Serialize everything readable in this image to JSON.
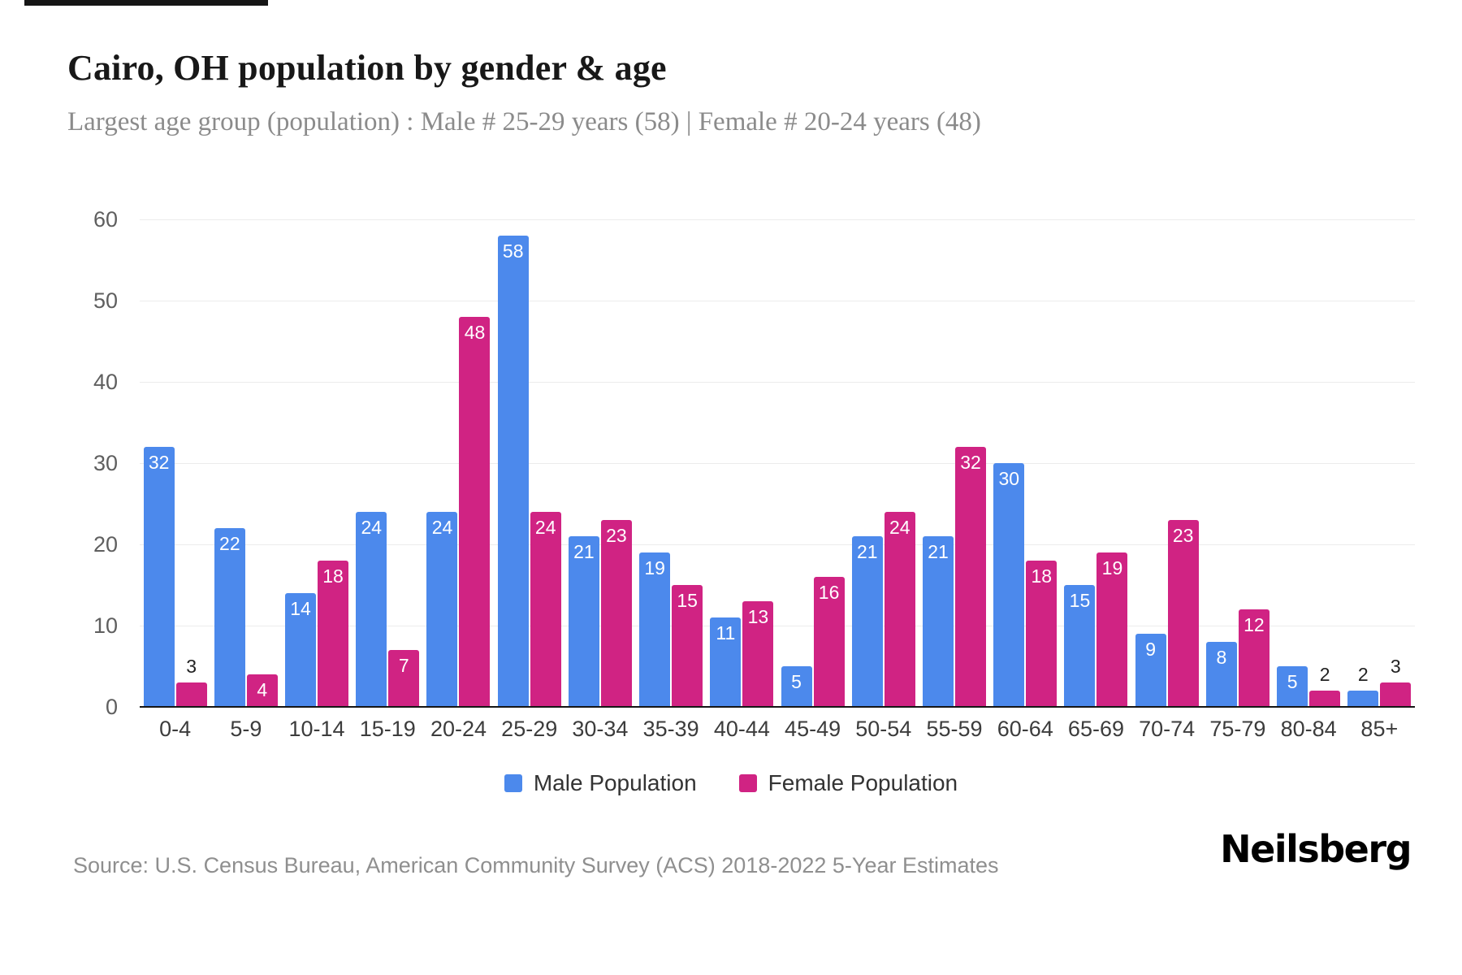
{
  "chart_data": {
    "type": "bar",
    "title": "Cairo, OH population by gender & age",
    "subtitle": "Largest age group (population) : Male # 25-29 years (58) | Female # 20-24 years (48)",
    "categories": [
      "0-4",
      "5-9",
      "10-14",
      "15-19",
      "20-24",
      "25-29",
      "30-34",
      "35-39",
      "40-44",
      "45-49",
      "50-54",
      "55-59",
      "60-64",
      "65-69",
      "70-74",
      "75-79",
      "80-84",
      "85+"
    ],
    "series": [
      {
        "name": "Male Population",
        "color": "#4c89ec",
        "values": [
          32,
          22,
          14,
          24,
          24,
          58,
          21,
          19,
          11,
          5,
          21,
          21,
          30,
          15,
          9,
          8,
          5,
          2
        ]
      },
      {
        "name": "Female Population",
        "color": "#d02383",
        "values": [
          3,
          4,
          18,
          7,
          48,
          24,
          23,
          15,
          13,
          16,
          24,
          32,
          18,
          19,
          23,
          12,
          2,
          3
        ]
      }
    ],
    "xlabel": "",
    "ylabel": "",
    "ylim": [
      0,
      60
    ],
    "yticks": [
      0,
      10,
      20,
      30,
      40,
      50,
      60
    ],
    "grid": true,
    "legend_position": "bottom",
    "label_inside_threshold": 4
  },
  "footer": {
    "source": "Source: U.S. Census Bureau, American Community Survey (ACS) 2018-2022 5-Year Estimates",
    "brand": "Neilsberg"
  }
}
